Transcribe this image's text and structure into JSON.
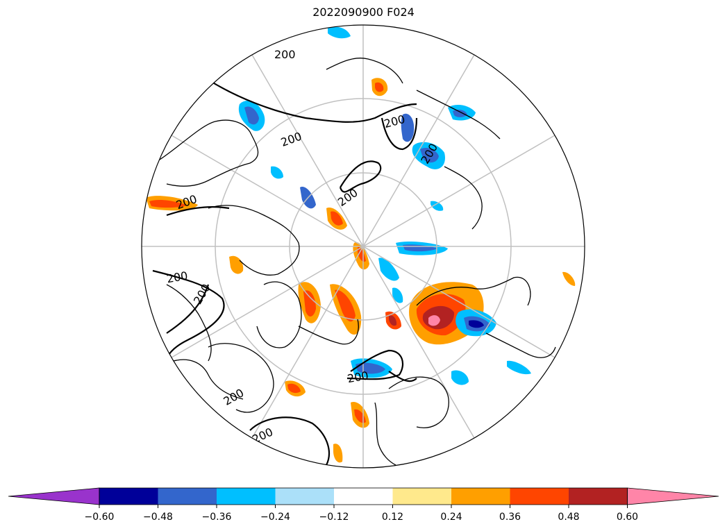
{
  "title": "2022090900 F024",
  "map": {
    "projection": "north-polar-stereographic",
    "contour_level": "200",
    "contour_labels": [
      "200",
      "200",
      "200",
      "200",
      "200",
      "200",
      "200",
      "200",
      "200",
      "200",
      "200"
    ]
  },
  "colorbar": {
    "extend": "both",
    "colors": [
      "#9933cc",
      "#000099",
      "#3366cc",
      "#00bfff",
      "#abe0f9",
      "#ffffff",
      "#ffe98c",
      "#ff9f00",
      "#ff4500",
      "#b22222",
      "#ff85a8"
    ],
    "tick_labels": [
      "−0.60",
      "−0.48",
      "−0.36",
      "−0.24",
      "−0.12",
      "0.12",
      "0.24",
      "0.36",
      "0.48",
      "0.60"
    ]
  }
}
